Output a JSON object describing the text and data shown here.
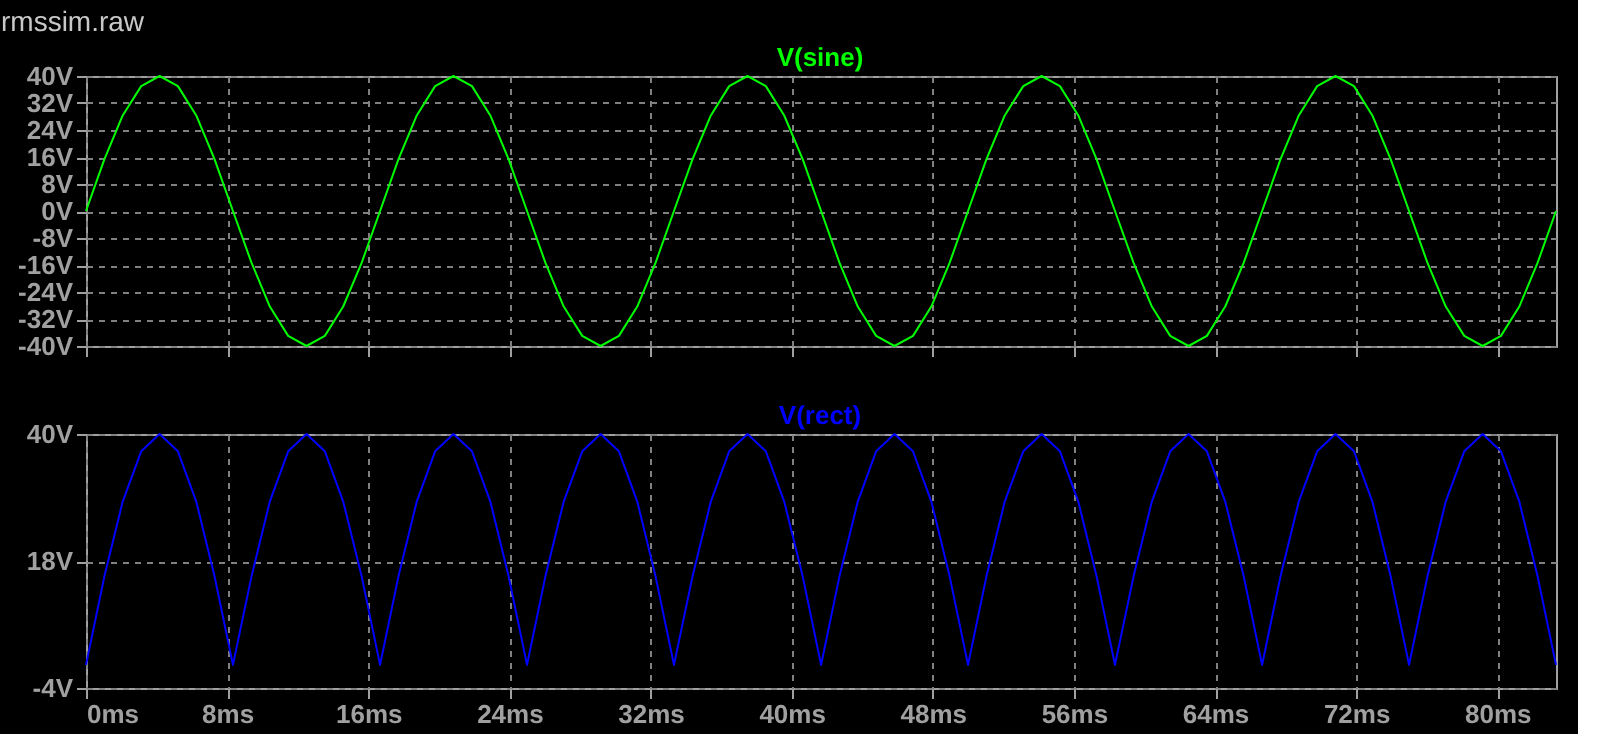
{
  "chart_data": [
    {
      "type": "line",
      "title": "rmssim.raw",
      "x": [
        0,
        1.04,
        2.08,
        3.13,
        4.17,
        5.21,
        6.25,
        7.29,
        8.33,
        9.38,
        10.42,
        11.46,
        12.5,
        13.54,
        14.58,
        15.63,
        16.67,
        17.71,
        18.75,
        19.79,
        20.83,
        21.88,
        22.92,
        23.96,
        25,
        26.04,
        27.08,
        28.13,
        29.17,
        30.21,
        31.25,
        32.29,
        33.33,
        34.38,
        35.42,
        36.46,
        37.5,
        38.54,
        39.58,
        40.63,
        41.67,
        42.71,
        43.75,
        44.79,
        45.83,
        46.88,
        47.92,
        48.96,
        50,
        51.04,
        52.08,
        53.13,
        54.17,
        55.21,
        56.25,
        57.29,
        58.33,
        59.38,
        60.42,
        61.46,
        62.5,
        63.54,
        64.58,
        65.63,
        66.67,
        67.71,
        68.75,
        69.79,
        70.83,
        71.88,
        72.92,
        73.96,
        75,
        76.04,
        77.08,
        78.13,
        79.17,
        80.21,
        81.25,
        82.29,
        83.33
      ],
      "series": [
        {
          "name": "V(sine)",
          "color": "#00ff00",
          "values": [
            0,
            15.3,
            28.3,
            37,
            40,
            37,
            28.3,
            15.3,
            0,
            -15.3,
            -28.3,
            -37,
            -40,
            -37,
            -28.3,
            -15.3,
            0,
            15.3,
            28.3,
            37,
            40,
            37,
            28.3,
            15.3,
            0,
            -15.3,
            -28.3,
            -37,
            -40,
            -37,
            -28.3,
            -15.3,
            0,
            15.3,
            28.3,
            37,
            40,
            37,
            28.3,
            15.3,
            0,
            -15.3,
            -28.3,
            -37,
            -40,
            -37,
            -28.3,
            -15.3,
            0,
            15.3,
            28.3,
            37,
            40,
            37,
            28.3,
            15.3,
            0,
            -15.3,
            -28.3,
            -37,
            -40,
            -37,
            -28.3,
            -15.3,
            0,
            15.3,
            28.3,
            37,
            40,
            37,
            28.3,
            15.3,
            0,
            -15.3,
            -28.3,
            -37,
            -40,
            -37,
            -28.3,
            -15.3,
            0
          ]
        }
      ],
      "xlim": [
        0,
        83.33
      ],
      "xticks": [
        0,
        8,
        16,
        24,
        32,
        40,
        48,
        56,
        64,
        72,
        80
      ],
      "ylim": [
        -40,
        40
      ],
      "yticks": [
        {
          "value": -40,
          "label": "-40V"
        },
        {
          "value": -32,
          "label": "-32V"
        },
        {
          "value": -24,
          "label": "-24V"
        },
        {
          "value": -16,
          "label": "-16V"
        },
        {
          "value": -8,
          "label": "-8V"
        },
        {
          "value": 0,
          "label": "0V"
        },
        {
          "value": 8,
          "label": "8V"
        },
        {
          "value": 16,
          "label": "16V"
        },
        {
          "value": 24,
          "label": "24V"
        },
        {
          "value": 32,
          "label": "32V"
        },
        {
          "value": 40,
          "label": "40V"
        }
      ],
      "tick_labels": "y",
      "grid": true,
      "marker": "none",
      "line_style": "solid"
    },
    {
      "type": "line",
      "x": [
        0,
        1.04,
        2.08,
        3.13,
        4.17,
        5.21,
        6.25,
        7.29,
        8.33,
        9.38,
        10.42,
        11.46,
        12.5,
        13.54,
        14.58,
        15.63,
        16.67,
        17.71,
        18.75,
        19.79,
        20.83,
        21.88,
        22.92,
        23.96,
        25,
        26.04,
        27.08,
        28.13,
        29.17,
        30.21,
        31.25,
        32.29,
        33.33,
        34.38,
        35.42,
        36.46,
        37.5,
        38.54,
        39.58,
        40.63,
        41.67,
        42.71,
        43.75,
        44.79,
        45.83,
        46.88,
        47.92,
        48.96,
        50,
        51.04,
        52.08,
        53.13,
        54.17,
        55.21,
        56.25,
        57.29,
        58.33,
        59.38,
        60.42,
        61.46,
        62.5,
        63.54,
        64.58,
        65.63,
        66.67,
        67.71,
        68.75,
        69.79,
        70.83,
        71.88,
        72.92,
        73.96,
        75,
        76.04,
        77.08,
        78.13,
        79.17,
        80.21,
        81.25,
        82.29,
        83.33
      ],
      "series": [
        {
          "name": "V(rect)",
          "color": "#0000ff",
          "values": [
            0,
            15.3,
            28.3,
            37,
            40,
            37,
            28.3,
            15.3,
            0,
            15.3,
            28.3,
            37,
            40,
            37,
            28.3,
            15.3,
            0,
            15.3,
            28.3,
            37,
            40,
            37,
            28.3,
            15.3,
            0,
            15.3,
            28.3,
            37,
            40,
            37,
            28.3,
            15.3,
            0,
            15.3,
            28.3,
            37,
            40,
            37,
            28.3,
            15.3,
            0,
            15.3,
            28.3,
            37,
            40,
            37,
            28.3,
            15.3,
            0,
            15.3,
            28.3,
            37,
            40,
            37,
            28.3,
            15.3,
            0,
            15.3,
            28.3,
            37,
            40,
            37,
            28.3,
            15.3,
            0,
            15.3,
            28.3,
            37,
            40,
            37,
            28.3,
            15.3,
            0,
            15.3,
            28.3,
            37,
            40,
            37,
            28.3,
            15.3,
            0
          ]
        }
      ],
      "xlim": [
        0,
        83.33
      ],
      "xticks": [
        {
          "value": 0,
          "label": "0ms"
        },
        {
          "value": 8,
          "label": "8ms"
        },
        {
          "value": 16,
          "label": "16ms"
        },
        {
          "value": 24,
          "label": "24ms"
        },
        {
          "value": 32,
          "label": "32ms"
        },
        {
          "value": 40,
          "label": "40ms"
        },
        {
          "value": 48,
          "label": "48ms"
        },
        {
          "value": 56,
          "label": "56ms"
        },
        {
          "value": 64,
          "label": "64ms"
        },
        {
          "value": 72,
          "label": "72ms"
        },
        {
          "value": 80,
          "label": "80ms"
        }
      ],
      "ylim": [
        -4,
        40
      ],
      "yticks": [
        {
          "value": -4,
          "label": "-4V"
        },
        {
          "value": 18,
          "label": "18V"
        },
        {
          "value": 40,
          "label": "40V"
        }
      ],
      "grid": true,
      "marker": "none",
      "line_style": "solid"
    }
  ]
}
